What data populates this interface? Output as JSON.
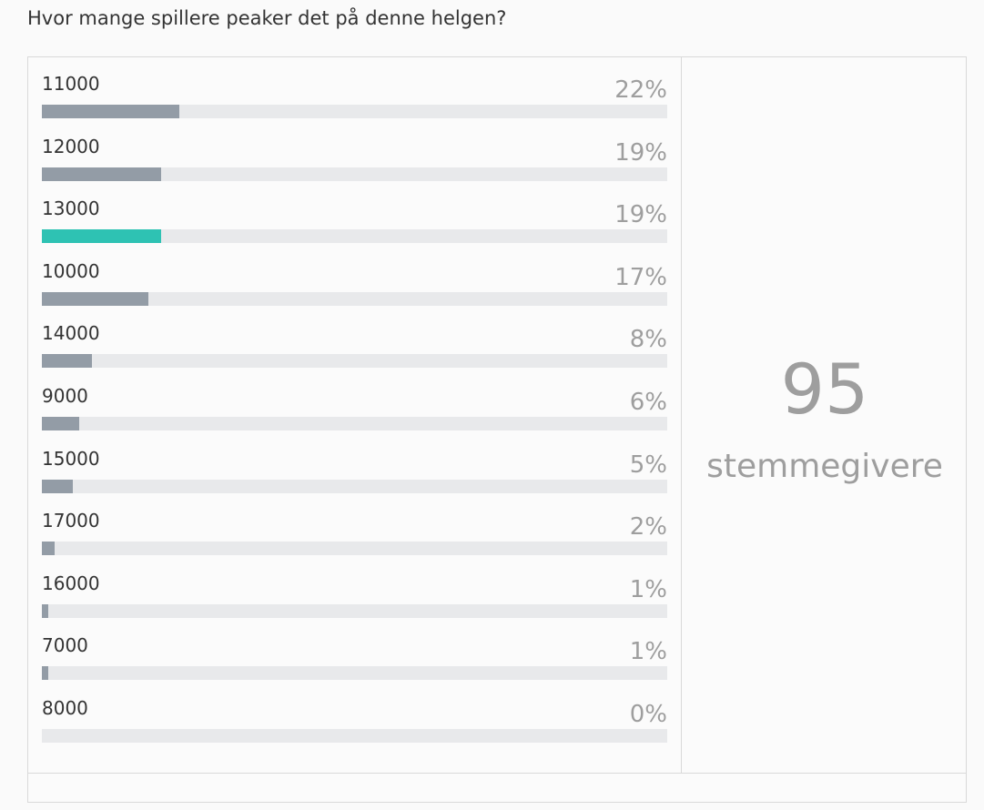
{
  "poll": {
    "question": "Hvor mange spillere peaker det på denne helgen?",
    "selected_color": "#2ec2b3",
    "bar_color": "#939ca6",
    "track_color": "#e8e9eb",
    "options": [
      {
        "label": "11000",
        "percent_text": "22%",
        "percent": 22,
        "selected": false
      },
      {
        "label": "12000",
        "percent_text": "19%",
        "percent": 19,
        "selected": false
      },
      {
        "label": "13000",
        "percent_text": "19%",
        "percent": 19,
        "selected": true
      },
      {
        "label": "10000",
        "percent_text": "17%",
        "percent": 17,
        "selected": false
      },
      {
        "label": "14000",
        "percent_text": "8%",
        "percent": 8,
        "selected": false
      },
      {
        "label": "9000",
        "percent_text": "6%",
        "percent": 6,
        "selected": false
      },
      {
        "label": "15000",
        "percent_text": "5%",
        "percent": 5,
        "selected": false
      },
      {
        "label": "17000",
        "percent_text": "2%",
        "percent": 2,
        "selected": false
      },
      {
        "label": "16000",
        "percent_text": "1%",
        "percent": 1,
        "selected": false
      },
      {
        "label": "7000",
        "percent_text": "1%",
        "percent": 1,
        "selected": false
      },
      {
        "label": "8000",
        "percent_text": "0%",
        "percent": 0,
        "selected": false
      }
    ],
    "voter_count": "95",
    "voter_label": "stemmegivere"
  }
}
